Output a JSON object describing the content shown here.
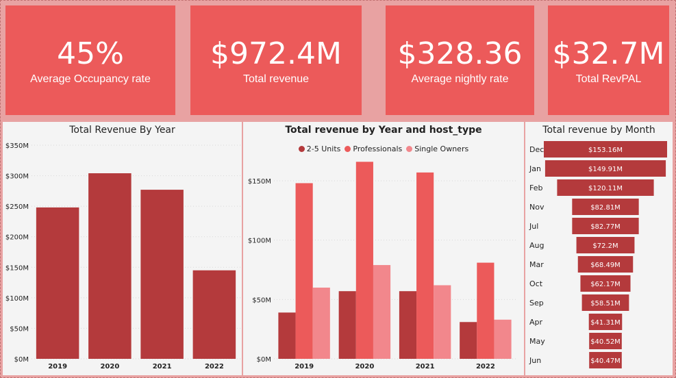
{
  "kpis": [
    {
      "value": "45%",
      "label": "Average Occupancy rate"
    },
    {
      "value": "$972.4M",
      "label": "Total revenue"
    },
    {
      "value": "$328.36",
      "label": "Average nightly rate"
    },
    {
      "value": "$32.7M",
      "label": "Total RevPAL"
    }
  ],
  "colors": {
    "dark": "#b43a3c",
    "mid": "#ec5a5a",
    "light": "#f2878c"
  },
  "chart_data": [
    {
      "type": "bar",
      "title": "Total Revenue By Year",
      "categories": [
        "2019",
        "2020",
        "2021",
        "2022"
      ],
      "values": [
        248,
        304,
        277,
        145
      ],
      "ylim": [
        0,
        350
      ],
      "yticks": [
        0,
        50,
        100,
        150,
        200,
        250,
        300,
        350
      ],
      "ytick_labels": [
        "$0M",
        "$50M",
        "$100M",
        "$150M",
        "$200M",
        "$250M",
        "$300M",
        "$350M"
      ],
      "grid": true
    },
    {
      "type": "bar",
      "title": "Total revenue by Year and host_type",
      "categories": [
        "2019",
        "2020",
        "2021",
        "2022"
      ],
      "series": [
        {
          "name": "2-5 Units",
          "values": [
            39,
            57,
            57,
            31
          ]
        },
        {
          "name": "Professionals",
          "values": [
            148,
            166,
            157,
            81
          ]
        },
        {
          "name": "Single Owners",
          "values": [
            60,
            79,
            62,
            33
          ]
        }
      ],
      "ylim": [
        0,
        180
      ],
      "yticks": [
        0,
        50,
        100,
        150
      ],
      "ytick_labels": [
        "$0M",
        "$50M",
        "$100M",
        "$150M"
      ],
      "legend": "top",
      "grid": true
    },
    {
      "type": "funnel",
      "title": "Total revenue by Month",
      "categories": [
        "Dec",
        "Jan",
        "Feb",
        "Nov",
        "Jul",
        "Aug",
        "Mar",
        "Oct",
        "Sep",
        "Apr",
        "May",
        "Jun"
      ],
      "values": [
        153.16,
        149.91,
        120.11,
        82.81,
        82.77,
        72.2,
        68.49,
        62.17,
        58.51,
        41.31,
        40.52,
        40.47
      ],
      "labels": [
        "$153.16M",
        "$149.91M",
        "$120.11M",
        "$82.81M",
        "$82.77M",
        "$72.2M",
        "$68.49M",
        "$62.17M",
        "$58.51M",
        "$41.31M",
        "$40.52M",
        "$40.47M"
      ]
    }
  ]
}
